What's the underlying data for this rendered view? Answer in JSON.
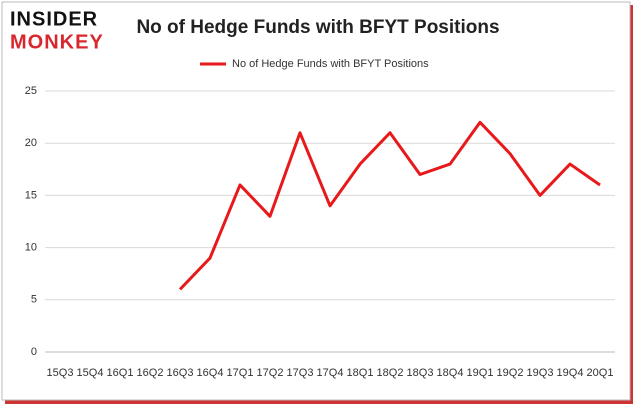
{
  "logo": [
    "INSIDER",
    "MONKEY"
  ],
  "chart_data": {
    "type": "line",
    "title": "No of Hedge Funds with BFYT Positions",
    "categories": [
      "15Q3",
      "15Q4",
      "16Q1",
      "16Q2",
      "16Q3",
      "16Q4",
      "17Q1",
      "17Q2",
      "17Q3",
      "17Q4",
      "18Q1",
      "18Q2",
      "18Q3",
      "18Q4",
      "19Q1",
      "19Q2",
      "19Q3",
      "19Q4",
      "20Q1"
    ],
    "series": [
      {
        "name": "No of Hedge Funds with BFYT Positions",
        "color": "#e8191b",
        "values": [
          null,
          null,
          null,
          null,
          6,
          9,
          16,
          13,
          21,
          14,
          18,
          21,
          17,
          18,
          22,
          19,
          15,
          18,
          16
        ]
      }
    ],
    "ylim": [
      0,
      25
    ],
    "yticks": [
      0,
      5,
      10,
      15,
      20,
      25
    ],
    "grid": true,
    "legend": "top"
  }
}
